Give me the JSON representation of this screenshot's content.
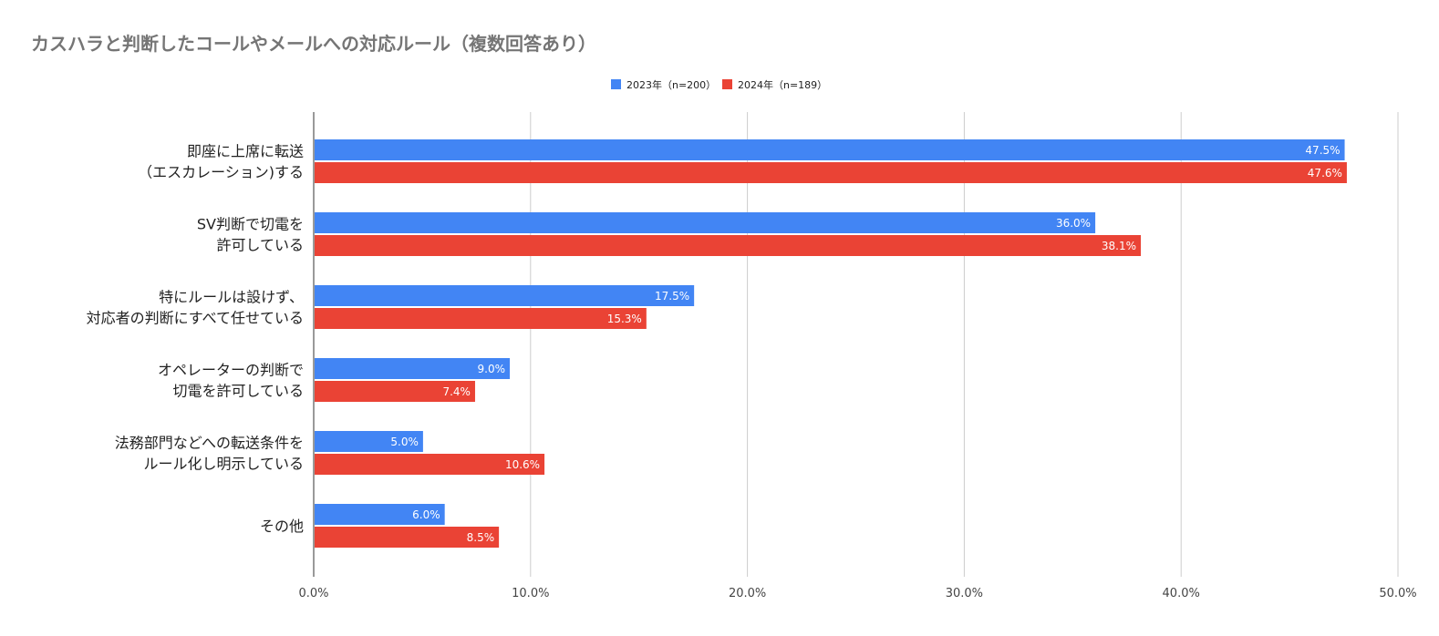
{
  "chart_data": {
    "type": "bar",
    "orientation": "horizontal",
    "title": "カスハラと判断したコールやメールへの対応ルール（複数回答あり）",
    "categories": [
      [
        "即座に上席に転送",
        "（エスカレーション)する"
      ],
      [
        "SV判断で切電を",
        "許可している"
      ],
      [
        "特にルールは設けず、",
        "対応者の判断にすべて任せている"
      ],
      [
        "オペレーターの判断で",
        "切電を許可している"
      ],
      [
        "法務部門などへの転送条件を",
        "ルール化し明示している"
      ],
      [
        "その他"
      ]
    ],
    "series": [
      {
        "name": "2023年（n=200）",
        "color": "#4285f4",
        "values": [
          47.5,
          36.0,
          17.5,
          9.0,
          5.0,
          6.0
        ]
      },
      {
        "name": "2024年（n=189）",
        "color": "#ea4335",
        "values": [
          47.6,
          38.1,
          15.3,
          7.4,
          10.6,
          8.5
        ]
      }
    ],
    "xlim": [
      0,
      50
    ],
    "xticks": [
      "0.0%",
      "10.0%",
      "20.0%",
      "30.0%",
      "40.0%",
      "50.0%"
    ],
    "grid": true,
    "legend": "top-center",
    "data_label_suffix": "%"
  }
}
